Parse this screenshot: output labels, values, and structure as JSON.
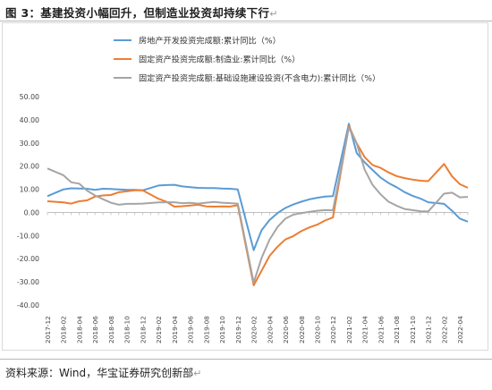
{
  "title": "图 3：基建投资小幅回升，但制造业投资却持续下行",
  "title_mark": "↵",
  "source": "资料来源：Wind，华宝证券研究创新部",
  "source_mark": "↵",
  "chart_data": {
    "type": "line",
    "ylim": [
      -40,
      50
    ],
    "yticks": [
      "50.00",
      "40.00",
      "30.00",
      "20.00",
      "10.00",
      "0.00",
      "-10.00",
      "-20.00",
      "-30.00",
      "-40.00"
    ],
    "ytick_values": [
      50,
      40,
      30,
      20,
      10,
      0,
      -10,
      -20,
      -30,
      -40
    ],
    "grid": false,
    "legend_position": "top",
    "categories": [
      "2017-12",
      "2018-01",
      "2018-02",
      "2018-03",
      "2018-04",
      "2018-05",
      "2018-06",
      "2018-07",
      "2018-08",
      "2018-09",
      "2018-10",
      "2018-11",
      "2018-12",
      "2019-01",
      "2019-02",
      "2019-03",
      "2019-04",
      "2019-05",
      "2019-06",
      "2019-07",
      "2019-08",
      "2019-09",
      "2019-10",
      "2019-11",
      "2019-12",
      "2020-01",
      "2020-02",
      "2020-03",
      "2020-04",
      "2020-05",
      "2020-06",
      "2020-07",
      "2020-08",
      "2020-09",
      "2020-10",
      "2020-11",
      "2020-12",
      "2021-01",
      "2021-02",
      "2021-03",
      "2021-04",
      "2021-05",
      "2021-06",
      "2021-07",
      "2021-08",
      "2021-09",
      "2021-10",
      "2021-11",
      "2021-12",
      "2022-01",
      "2022-02",
      "2022-03",
      "2022-04",
      "2022-05"
    ],
    "tick_labels": [
      "2017-12",
      "2018-02",
      "2018-04",
      "2018-06",
      "2018-08",
      "2018-10",
      "2018-12",
      "2019-02",
      "2019-04",
      "2019-06",
      "2019-08",
      "2019-10",
      "2019-12",
      "2020-02",
      "2020-04",
      "2020-06",
      "2020-08",
      "2020-10",
      "2020-12",
      "2021-02",
      "2021-04",
      "2021-06",
      "2021-08",
      "2021-10",
      "2021-12",
      "2022-02",
      "2022-04"
    ],
    "series": [
      {
        "name": "房地产开发投资完成额:累计同比（%）",
        "color": "#5b9bd5",
        "values": [
          7.0,
          null,
          9.9,
          10.4,
          10.3,
          10.2,
          9.7,
          10.2,
          10.1,
          9.9,
          9.7,
          9.7,
          9.5,
          null,
          11.6,
          11.8,
          11.9,
          11.2,
          10.9,
          10.6,
          10.5,
          10.5,
          10.3,
          10.2,
          9.9,
          null,
          -16.3,
          -7.7,
          -3.3,
          -0.3,
          1.9,
          3.4,
          4.6,
          5.6,
          6.3,
          6.8,
          7.0,
          null,
          38.3,
          25.6,
          21.6,
          18.3,
          15.0,
          12.7,
          10.9,
          8.8,
          7.2,
          6.0,
          4.4,
          null,
          3.7,
          0.7,
          -2.7,
          -4.0
        ]
      },
      {
        "name": "固定资产投资完成额:制造业:累计同比（%）",
        "color": "#ed7d31",
        "values": [
          4.8,
          null,
          4.3,
          3.8,
          4.8,
          5.2,
          6.8,
          7.3,
          7.5,
          8.7,
          9.1,
          9.5,
          9.5,
          null,
          5.9,
          4.6,
          2.5,
          2.7,
          3.0,
          3.3,
          2.6,
          2.5,
          2.6,
          2.5,
          3.1,
          null,
          -31.5,
          -25.2,
          -18.8,
          -14.8,
          -11.7,
          -10.2,
          -8.1,
          -6.5,
          -5.3,
          -3.5,
          -2.2,
          null,
          37.3,
          29.8,
          23.8,
          20.4,
          19.2,
          17.3,
          15.7,
          14.8,
          14.2,
          13.7,
          13.5,
          null,
          20.9,
          15.6,
          12.2,
          10.6
        ]
      },
      {
        "name": "固定资产投资完成额:基础设施建设投资(不含电力):累计同比（%）",
        "color": "#a5a5a5",
        "values": [
          19.0,
          null,
          16.1,
          13.0,
          12.4,
          9.4,
          7.3,
          5.7,
          4.2,
          3.3,
          3.7,
          3.7,
          3.8,
          null,
          4.3,
          4.4,
          4.4,
          4.0,
          4.1,
          3.8,
          4.2,
          4.5,
          4.2,
          4.0,
          3.8,
          null,
          -30.3,
          -19.7,
          -11.8,
          -6.3,
          -2.7,
          -1.0,
          -0.3,
          0.2,
          0.7,
          1.0,
          0.9,
          null,
          36.6,
          29.7,
          18.4,
          11.8,
          7.8,
          4.6,
          2.9,
          1.5,
          1.0,
          0.5,
          0.4,
          null,
          8.1,
          8.5,
          6.5,
          6.7
        ]
      }
    ]
  }
}
